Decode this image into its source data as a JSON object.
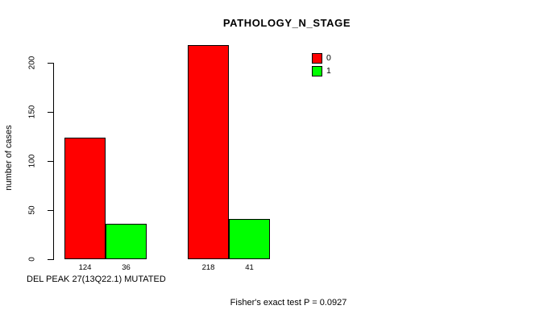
{
  "chart_data": {
    "type": "bar",
    "title": "PATHOLOGY_N_STAGE",
    "ylabel": "number of cases",
    "xlabel": "DEL PEAK 27(13Q22.1) MUTATED",
    "annotation": "Fisher's exact test P = 0.0927",
    "series": [
      {
        "name": "0",
        "color": "#FF0000",
        "values": [
          124,
          218
        ]
      },
      {
        "name": "1",
        "color": "#00FF00",
        "values": [
          36,
          41
        ]
      }
    ],
    "value_labels": [
      [
        "124",
        "36"
      ],
      [
        "218",
        "41"
      ]
    ],
    "y_ticks": [
      0,
      50,
      100,
      150,
      200
    ],
    "ylim": [
      0,
      230
    ],
    "grid": false,
    "legend": {
      "position": "top-right",
      "entries": [
        {
          "label": "0",
          "color": "#FF0000"
        },
        {
          "label": "1",
          "color": "#00FF00"
        }
      ]
    }
  },
  "colors": {
    "background": "#FFFFFF",
    "text": "#000000",
    "axis": "#000000"
  }
}
